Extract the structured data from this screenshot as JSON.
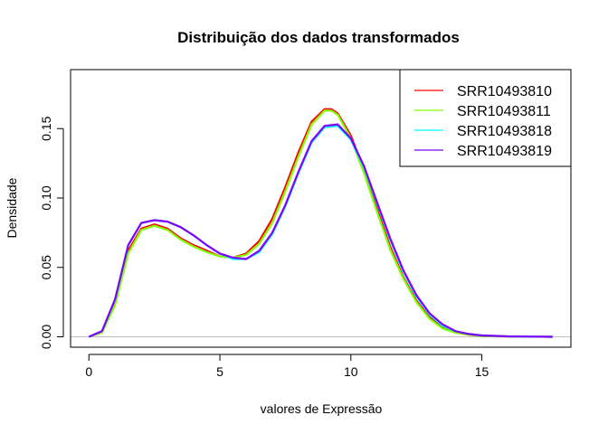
{
  "chart_data": {
    "type": "line",
    "title": "Distribuição dos dados transformados",
    "xlabel": "valores de Expressão",
    "ylabel": "Densidade",
    "xlim": [
      -0.7,
      18.4
    ],
    "ylim": [
      -0.0075,
      0.1925
    ],
    "xticks": [
      "0",
      "5",
      "10",
      "15"
    ],
    "xtick_values": [
      0,
      5,
      10,
      15
    ],
    "yticks": [
      "0.00",
      "0.05",
      "0.10",
      "0.15"
    ],
    "ytick_values": [
      0,
      0.05,
      0.1,
      0.15
    ],
    "grid": false,
    "baseline": 0,
    "baseline_color": "#bebebe",
    "legend_position": "top-right",
    "series": [
      {
        "name": "SRR10493810",
        "color": "#ff0000",
        "x": [
          0,
          0.5,
          1,
          1.5,
          2,
          2.5,
          3,
          3.5,
          4,
          4.5,
          5,
          5.5,
          6,
          6.5,
          7,
          7.5,
          8,
          8.5,
          9,
          9.25,
          9.5,
          10,
          10.5,
          11,
          11.5,
          12,
          12.5,
          13,
          13.5,
          14,
          14.5,
          15,
          16,
          17,
          17.7
        ],
        "y": [
          0,
          0.004,
          0.025,
          0.062,
          0.078,
          0.081,
          0.078,
          0.071,
          0.066,
          0.062,
          0.058,
          0.057,
          0.06,
          0.069,
          0.085,
          0.108,
          0.133,
          0.155,
          0.164,
          0.164,
          0.161,
          0.145,
          0.12,
          0.092,
          0.065,
          0.043,
          0.026,
          0.014,
          0.007,
          0.003,
          0.0015,
          0.0005,
          0.0002,
          0.0001,
          0
        ]
      },
      {
        "name": "SRR10493811",
        "color": "#80ff00",
        "x": [
          0,
          0.5,
          1,
          1.5,
          2,
          2.5,
          3,
          3.5,
          4,
          4.5,
          5,
          5.5,
          6,
          6.5,
          7,
          7.5,
          8,
          8.5,
          9,
          9.25,
          9.5,
          10,
          10.5,
          11,
          11.5,
          12,
          12.5,
          13,
          13.5,
          14,
          14.5,
          15,
          16,
          17,
          17.7
        ],
        "y": [
          0,
          0.003,
          0.023,
          0.06,
          0.077,
          0.08,
          0.077,
          0.07,
          0.065,
          0.061,
          0.058,
          0.057,
          0.059,
          0.067,
          0.082,
          0.105,
          0.13,
          0.153,
          0.163,
          0.163,
          0.16,
          0.143,
          0.118,
          0.09,
          0.063,
          0.042,
          0.025,
          0.013,
          0.006,
          0.003,
          0.0015,
          0.0005,
          0.0002,
          0.0001,
          0
        ]
      },
      {
        "name": "SRR10493818",
        "color": "#00ffff",
        "x": [
          0,
          0.5,
          1,
          1.5,
          2,
          2.5,
          3,
          3.5,
          4,
          4.5,
          5,
          5.5,
          6,
          6.5,
          7,
          7.5,
          8,
          8.5,
          9,
          9.5,
          10,
          10.5,
          11,
          11.5,
          12,
          12.5,
          13,
          13.5,
          14,
          14.5,
          15,
          16,
          17,
          17.7
        ],
        "y": [
          0,
          0.004,
          0.027,
          0.066,
          0.082,
          0.084,
          0.083,
          0.079,
          0.073,
          0.066,
          0.06,
          0.056,
          0.056,
          0.061,
          0.074,
          0.094,
          0.118,
          0.14,
          0.151,
          0.152,
          0.142,
          0.122,
          0.096,
          0.07,
          0.047,
          0.029,
          0.016,
          0.008,
          0.004,
          0.002,
          0.001,
          0.0003,
          0.0001,
          0
        ]
      },
      {
        "name": "SRR10493819",
        "color": "#8000ff",
        "x": [
          0,
          0.5,
          1,
          1.5,
          2,
          2.5,
          3,
          3.5,
          4,
          4.5,
          5,
          5.5,
          6,
          6.5,
          7,
          7.5,
          8,
          8.5,
          9,
          9.5,
          10,
          10.5,
          11,
          11.5,
          12,
          12.5,
          13,
          13.5,
          14,
          14.5,
          15,
          16,
          17,
          17.7
        ],
        "y": [
          0,
          0.004,
          0.027,
          0.066,
          0.082,
          0.084,
          0.083,
          0.079,
          0.073,
          0.066,
          0.06,
          0.057,
          0.056,
          0.062,
          0.075,
          0.095,
          0.119,
          0.141,
          0.152,
          0.153,
          0.143,
          0.123,
          0.097,
          0.071,
          0.048,
          0.03,
          0.017,
          0.009,
          0.004,
          0.002,
          0.001,
          0.0003,
          0.0001,
          0
        ]
      }
    ]
  }
}
